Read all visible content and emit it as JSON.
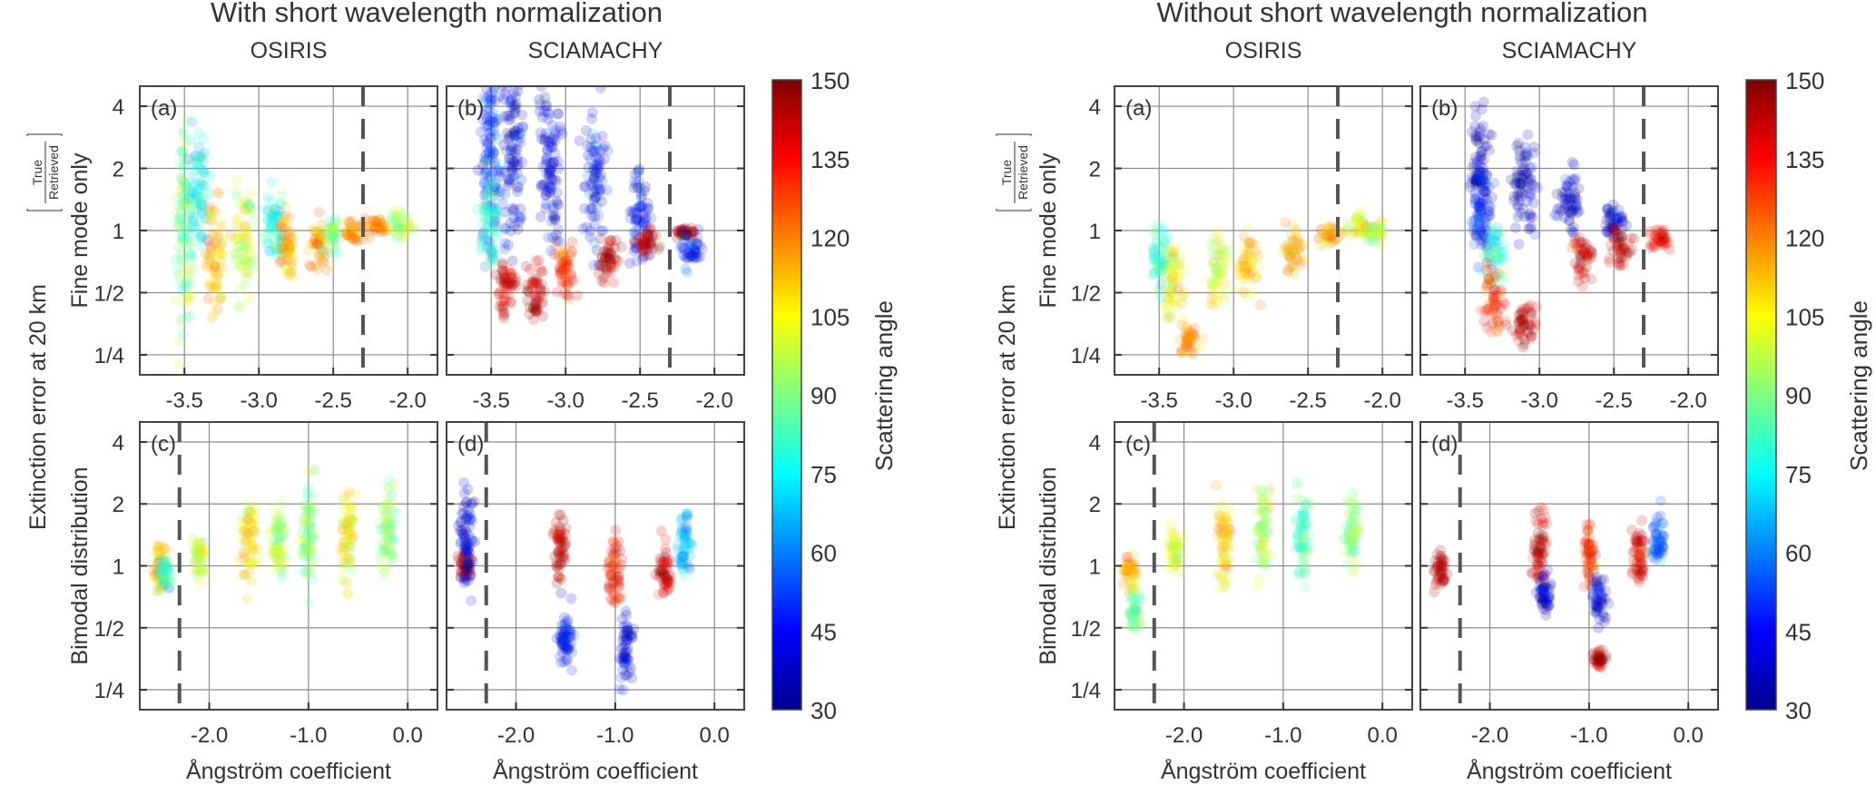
{
  "chart_data": {
    "type": "scatter",
    "colormap": "jet",
    "colorbar": {
      "label": "Scattering angle",
      "range": [
        30,
        150
      ],
      "ticks": [
        30,
        45,
        60,
        75,
        90,
        105,
        120,
        135,
        150
      ]
    },
    "shared_ylabel": "Extinction error at 20 km",
    "ylabel_fraction": {
      "numerator": "True",
      "denominator": "Retrieved"
    },
    "row_labels": [
      "Fine mode only",
      "Bimodal distribution"
    ],
    "xlabel": "Ångström coefficient",
    "yscale": "log2",
    "ylim": [
      0.2,
      5
    ],
    "yticks": [
      0.25,
      0.5,
      1,
      2,
      4
    ],
    "ytick_labels": [
      "1/4",
      "1/2",
      "1",
      "2",
      "4"
    ],
    "grid": true,
    "figures": [
      {
        "title": "With short wavelength normalization",
        "columns": [
          "OSIRIS",
          "SCIAMACHY"
        ],
        "panels": [
          {
            "label": "(a)",
            "instrument": "OSIRIS",
            "row": "Fine mode only",
            "xlim": [
              -3.8,
              -1.8
            ],
            "xticks": [
              -3.5,
              -3.0,
              -2.5,
              -2.0
            ],
            "xtick_labels": [
              "-3.5",
              "-3.0",
              "-2.5",
              "-2.0"
            ],
            "dashed_x": -2.3,
            "clusters": [
              {
                "x": -3.5,
                "y_center": 1.0,
                "y_spread": 0.9,
                "angle": 90
              },
              {
                "x": -3.4,
                "y_center": 1.5,
                "y_spread": 0.5,
                "angle": 75
              },
              {
                "x": -3.3,
                "y_center": 0.7,
                "y_spread": 0.5,
                "angle": 112
              },
              {
                "x": -3.1,
                "y_center": 0.9,
                "y_spread": 0.5,
                "angle": 100
              },
              {
                "x": -2.9,
                "y_center": 1.05,
                "y_spread": 0.35,
                "angle": 80
              },
              {
                "x": -2.8,
                "y_center": 0.8,
                "y_spread": 0.3,
                "angle": 115
              },
              {
                "x": -2.6,
                "y_center": 0.85,
                "y_spread": 0.2,
                "angle": 118
              },
              {
                "x": -2.5,
                "y_center": 0.95,
                "y_spread": 0.15,
                "angle": 90
              },
              {
                "x": -2.35,
                "y_center": 0.98,
                "y_spread": 0.1,
                "angle": 120
              },
              {
                "x": -2.2,
                "y_center": 1.05,
                "y_spread": 0.08,
                "angle": 118
              },
              {
                "x": -2.05,
                "y_center": 1.05,
                "y_spread": 0.15,
                "angle": 95
              }
            ]
          },
          {
            "label": "(b)",
            "instrument": "SCIAMACHY",
            "row": "Fine mode only",
            "xlim": [
              -3.8,
              -1.8
            ],
            "xticks": [
              -3.5,
              -3.0,
              -2.5,
              -2.0
            ],
            "xtick_labels": [
              "-3.5",
              "-3.0",
              "-2.5",
              "-2.0"
            ],
            "dashed_x": -2.3,
            "clusters": [
              {
                "x": -3.5,
                "y_center": 2.4,
                "y_spread": 1.0,
                "angle": 50
              },
              {
                "x": -3.35,
                "y_center": 2.8,
                "y_spread": 1.0,
                "angle": 40
              },
              {
                "x": -3.1,
                "y_center": 2.0,
                "y_spread": 0.8,
                "angle": 42
              },
              {
                "x": -2.8,
                "y_center": 1.6,
                "y_spread": 0.6,
                "angle": 45
              },
              {
                "x": -2.5,
                "y_center": 1.2,
                "y_spread": 0.4,
                "angle": 45
              },
              {
                "x": -3.5,
                "y_center": 1.1,
                "y_spread": 0.4,
                "angle": 80
              },
              {
                "x": -3.4,
                "y_center": 0.55,
                "y_spread": 0.3,
                "angle": 140
              },
              {
                "x": -3.2,
                "y_center": 0.5,
                "y_spread": 0.25,
                "angle": 145
              },
              {
                "x": -3.0,
                "y_center": 0.65,
                "y_spread": 0.3,
                "angle": 130
              },
              {
                "x": -2.7,
                "y_center": 0.75,
                "y_spread": 0.2,
                "angle": 145
              },
              {
                "x": -2.45,
                "y_center": 0.88,
                "y_spread": 0.12,
                "angle": 145
              },
              {
                "x": -2.2,
                "y_center": 0.97,
                "y_spread": 0.06,
                "angle": 145
              },
              {
                "x": -2.15,
                "y_center": 0.8,
                "y_spread": 0.15,
                "angle": 45
              }
            ]
          },
          {
            "label": "(c)",
            "instrument": "OSIRIS",
            "row": "Bimodal distribution",
            "xlim": [
              -2.7,
              0.3
            ],
            "xticks": [
              -2.0,
              -1.0,
              0.0
            ],
            "xtick_labels": [
              "-2.0",
              "-1.0",
              "0.0"
            ],
            "dashed_x": -2.3,
            "clusters": [
              {
                "x": -2.5,
                "y_center": 1.0,
                "y_spread": 0.2,
                "angle": 115
              },
              {
                "x": -2.45,
                "y_center": 0.9,
                "y_spread": 0.15,
                "angle": 80
              },
              {
                "x": -2.1,
                "y_center": 1.1,
                "y_spread": 0.2,
                "angle": 100
              },
              {
                "x": -1.6,
                "y_center": 1.35,
                "y_spread": 0.4,
                "angle": 110
              },
              {
                "x": -1.3,
                "y_center": 1.4,
                "y_spread": 0.4,
                "angle": 95
              },
              {
                "x": -1.0,
                "y_center": 1.5,
                "y_spread": 0.5,
                "angle": 90
              },
              {
                "x": -0.6,
                "y_center": 1.35,
                "y_spread": 0.45,
                "angle": 105
              },
              {
                "x": -0.2,
                "y_center": 1.5,
                "y_spread": 0.4,
                "angle": 90
              }
            ]
          },
          {
            "label": "(d)",
            "instrument": "SCIAMACHY",
            "row": "Bimodal distribution",
            "xlim": [
              -2.7,
              0.3
            ],
            "xticks": [
              -2.0,
              -1.0,
              0.0
            ],
            "xtick_labels": [
              "-2.0",
              "-1.0",
              "0.0"
            ],
            "dashed_x": -2.3,
            "clusters": [
              {
                "x": -2.5,
                "y_center": 1.0,
                "y_spread": 0.15,
                "angle": 145
              },
              {
                "x": -2.5,
                "y_center": 1.4,
                "y_spread": 0.5,
                "angle": 40
              },
              {
                "x": -1.55,
                "y_center": 1.2,
                "y_spread": 0.3,
                "angle": 145
              },
              {
                "x": -1.5,
                "y_center": 0.45,
                "y_spread": 0.35,
                "angle": 45
              },
              {
                "x": -1.0,
                "y_center": 1.0,
                "y_spread": 0.3,
                "angle": 135
              },
              {
                "x": -0.9,
                "y_center": 0.4,
                "y_spread": 0.3,
                "angle": 40
              },
              {
                "x": -0.5,
                "y_center": 0.95,
                "y_spread": 0.25,
                "angle": 140
              },
              {
                "x": -0.3,
                "y_center": 1.3,
                "y_spread": 0.3,
                "angle": 65
              }
            ]
          }
        ]
      },
      {
        "title": "Without short wavelength normalization",
        "columns": [
          "OSIRIS",
          "SCIAMACHY"
        ],
        "panels": [
          {
            "label": "(a)",
            "instrument": "OSIRIS",
            "row": "Fine mode only",
            "xlim": [
              -3.8,
              -1.8
            ],
            "xticks": [
              -3.5,
              -3.0,
              -2.5,
              -2.0
            ],
            "xtick_labels": [
              "-3.5",
              "-3.0",
              "-2.5",
              "-2.0"
            ],
            "dashed_x": -2.3,
            "clusters": [
              {
                "x": -3.5,
                "y_center": 0.75,
                "y_spread": 0.3,
                "angle": 80
              },
              {
                "x": -3.4,
                "y_center": 0.55,
                "y_spread": 0.35,
                "angle": 105
              },
              {
                "x": -3.3,
                "y_center": 0.3,
                "y_spread": 0.15,
                "angle": 118
              },
              {
                "x": -3.1,
                "y_center": 0.65,
                "y_spread": 0.3,
                "angle": 100
              },
              {
                "x": -2.9,
                "y_center": 0.7,
                "y_spread": 0.25,
                "angle": 110
              },
              {
                "x": -2.6,
                "y_center": 0.8,
                "y_spread": 0.2,
                "angle": 112
              },
              {
                "x": -2.35,
                "y_center": 0.95,
                "y_spread": 0.1,
                "angle": 115
              },
              {
                "x": -2.15,
                "y_center": 1.05,
                "y_spread": 0.1,
                "angle": 105
              },
              {
                "x": -2.05,
                "y_center": 1.0,
                "y_spread": 0.1,
                "angle": 95
              }
            ]
          },
          {
            "label": "(b)",
            "instrument": "SCIAMACHY",
            "row": "Fine mode only",
            "xlim": [
              -3.8,
              -1.8
            ],
            "xticks": [
              -3.5,
              -3.0,
              -2.5,
              -2.0
            ],
            "xtick_labels": [
              "-3.5",
              "-3.0",
              "-2.5",
              "-2.0"
            ],
            "dashed_x": -2.3,
            "clusters": [
              {
                "x": -3.4,
                "y_center": 2.0,
                "y_spread": 0.6,
                "angle": 35
              },
              {
                "x": -3.1,
                "y_center": 1.7,
                "y_spread": 0.5,
                "angle": 35
              },
              {
                "x": -2.8,
                "y_center": 1.4,
                "y_spread": 0.3,
                "angle": 38
              },
              {
                "x": -2.5,
                "y_center": 1.15,
                "y_spread": 0.15,
                "angle": 40
              },
              {
                "x": -3.4,
                "y_center": 1.2,
                "y_spread": 0.4,
                "angle": 50
              },
              {
                "x": -3.3,
                "y_center": 0.8,
                "y_spread": 0.3,
                "angle": 80
              },
              {
                "x": -3.3,
                "y_center": 0.45,
                "y_spread": 0.3,
                "angle": 130
              },
              {
                "x": -3.1,
                "y_center": 0.35,
                "y_spread": 0.2,
                "angle": 145
              },
              {
                "x": -2.7,
                "y_center": 0.75,
                "y_spread": 0.2,
                "angle": 140
              },
              {
                "x": -2.45,
                "y_center": 0.8,
                "y_spread": 0.15,
                "angle": 145
              },
              {
                "x": -2.2,
                "y_center": 0.92,
                "y_spread": 0.1,
                "angle": 140
              }
            ]
          },
          {
            "label": "(c)",
            "instrument": "OSIRIS",
            "row": "Bimodal distribution",
            "xlim": [
              -2.7,
              0.3
            ],
            "xticks": [
              -2.0,
              -1.0,
              0.0
            ],
            "xtick_labels": [
              "-2.0",
              "-1.0",
              "0.0"
            ],
            "dashed_x": -2.3,
            "clusters": [
              {
                "x": -2.55,
                "y_center": 0.95,
                "y_spread": 0.15,
                "angle": 115
              },
              {
                "x": -2.5,
                "y_center": 0.6,
                "y_spread": 0.2,
                "angle": 90
              },
              {
                "x": -2.1,
                "y_center": 1.2,
                "y_spread": 0.2,
                "angle": 100
              },
              {
                "x": -1.6,
                "y_center": 1.4,
                "y_spread": 0.4,
                "angle": 110
              },
              {
                "x": -1.2,
                "y_center": 1.5,
                "y_spread": 0.4,
                "angle": 95
              },
              {
                "x": -0.8,
                "y_center": 1.4,
                "y_spread": 0.4,
                "angle": 85
              },
              {
                "x": -0.3,
                "y_center": 1.5,
                "y_spread": 0.35,
                "angle": 90
              }
            ]
          },
          {
            "label": "(d)",
            "instrument": "SCIAMACHY",
            "row": "Bimodal distribution",
            "xlim": [
              -2.7,
              0.3
            ],
            "xticks": [
              -2.0,
              -1.0,
              0.0
            ],
            "xtick_labels": [
              "-2.0",
              "-1.0",
              "0.0"
            ],
            "dashed_x": -2.3,
            "clusters": [
              {
                "x": -2.5,
                "y_center": 0.95,
                "y_spread": 0.15,
                "angle": 145
              },
              {
                "x": -1.5,
                "y_center": 1.3,
                "y_spread": 0.35,
                "angle": 145
              },
              {
                "x": -1.45,
                "y_center": 0.7,
                "y_spread": 0.2,
                "angle": 40
              },
              {
                "x": -1.0,
                "y_center": 1.1,
                "y_spread": 0.3,
                "angle": 130
              },
              {
                "x": -0.9,
                "y_center": 0.7,
                "y_spread": 0.2,
                "angle": 40
              },
              {
                "x": -0.5,
                "y_center": 1.1,
                "y_spread": 0.3,
                "angle": 140
              },
              {
                "x": -0.3,
                "y_center": 1.35,
                "y_spread": 0.25,
                "angle": 55
              },
              {
                "x": -0.9,
                "y_center": 0.35,
                "y_spread": 0.08,
                "angle": 145
              }
            ]
          }
        ]
      }
    ]
  }
}
